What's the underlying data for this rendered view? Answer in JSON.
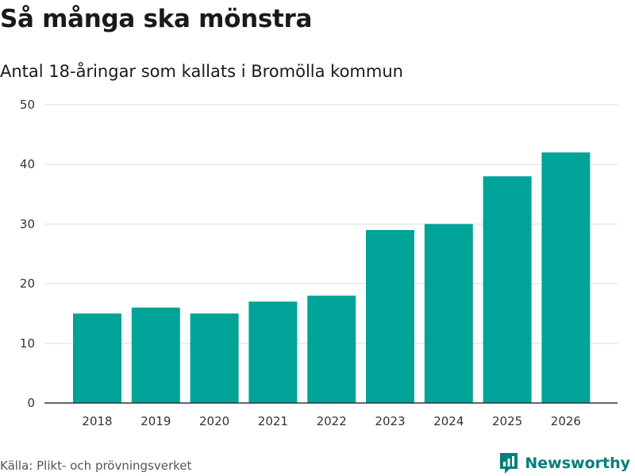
{
  "header": {
    "title": "Så många ska mönstra",
    "subtitle": "Antal 18-åringar som kallats i Bromölla kommun"
  },
  "footer": {
    "source": "Källa: Plikt- och prövningsverket",
    "brand": "Newsworthy",
    "brand_icon": "newsworthy-logo-icon"
  },
  "colors": {
    "bar": "#00a398",
    "brand": "#007f7a",
    "grid": "#dddddd",
    "axis": "#333333"
  },
  "chart_data": {
    "type": "bar",
    "title": "Så många ska mönstra",
    "subtitle": "Antal 18-åringar som kallats i Bromölla kommun",
    "categories": [
      "2018",
      "2019",
      "2020",
      "2021",
      "2022",
      "2023",
      "2024",
      "2025",
      "2026"
    ],
    "values": [
      15,
      16,
      15,
      17,
      18,
      29,
      30,
      38,
      42
    ],
    "ylim": [
      0,
      50
    ],
    "yticks": [
      0,
      10,
      20,
      30,
      40,
      50
    ],
    "xlabel": "",
    "ylabel": "",
    "grid": true,
    "legend": "none"
  }
}
